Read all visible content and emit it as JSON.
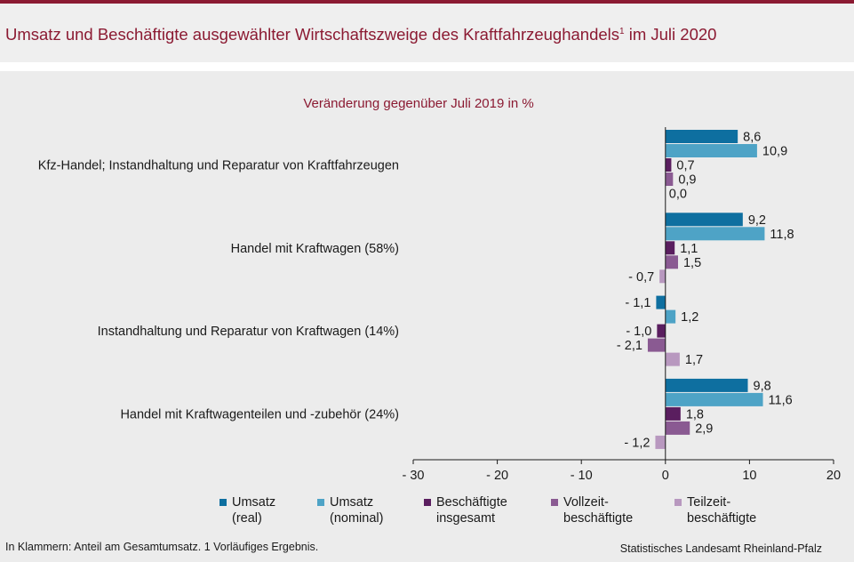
{
  "title_main": "Umsatz und Beschäftigte ausgewählter Wirtschaftszweige des Kraftfahrzeughandels",
  "title_sup": "1",
  "title_end": "im Juli 2020",
  "footnote": "In Klammern: Anteil am Gesamtumsatz. 1 Vorläufiges  Ergebnis.",
  "source": "Statistisches Landesamt Rheinland-Pfalz",
  "colors": {
    "title": "#8b1a32",
    "umsatz_real": "#0e6fa0",
    "umsatz_nominal": "#4ea3c6",
    "besch_insgesamt": "#5a1e5f",
    "vollzeit": "#8a5a92",
    "teilzeit": "#b898bf"
  },
  "chart_data": {
    "type": "bar",
    "orientation": "horizontal",
    "subtitle": "Veränderung  gegenüber  Juli 2019 in %",
    "xlim": [
      -30,
      20
    ],
    "xticks": [
      -30,
      -20,
      -10,
      0,
      10,
      20
    ],
    "xtick_labels": [
      "- 30",
      "- 20",
      "- 10",
      "0",
      "10",
      "20"
    ],
    "categories": [
      "Kfz-Handel; Instandhaltung und Reparatur von Kraftfahrzeugen",
      "Handel mit Kraftwagen (58%)",
      "Instandhaltung und Reparatur von Kraftwagen (14%)",
      "Handel mit Kraftwagenteilen und -zubehör (24%)"
    ],
    "series": [
      {
        "name": "Umsatz\n(real)",
        "color": "#0e6fa0",
        "values": [
          8.6,
          9.2,
          -1.1,
          9.8
        ],
        "labels": [
          "8,6",
          "9,2",
          "- 1,1",
          "9,8"
        ]
      },
      {
        "name": "Umsatz\n(nominal)",
        "color": "#4ea3c6",
        "values": [
          10.9,
          11.8,
          1.2,
          11.6
        ],
        "labels": [
          "10,9",
          "11,8",
          "1,2",
          "11,6"
        ]
      },
      {
        "name": "Beschäftigte\ninsgesamt",
        "color": "#5a1e5f",
        "values": [
          0.7,
          1.1,
          -1.0,
          1.8
        ],
        "labels": [
          "0,7",
          "1,1",
          "- 1,0",
          "1,8"
        ]
      },
      {
        "name": "Vollzeit-\nbeschäftigte",
        "color": "#8a5a92",
        "values": [
          0.9,
          1.5,
          -2.1,
          2.9
        ],
        "labels": [
          "0,9",
          "1,5",
          "- 2,1",
          "2,9"
        ]
      },
      {
        "name": "Teilzeit-\nbeschäftigte",
        "color": "#b898bf",
        "values": [
          0.0,
          -0.7,
          1.7,
          -1.2
        ],
        "labels": [
          "0,0",
          "- 0,7",
          "1,7",
          "- 1,2"
        ]
      }
    ],
    "legend_position": "bottom",
    "grid": false
  }
}
